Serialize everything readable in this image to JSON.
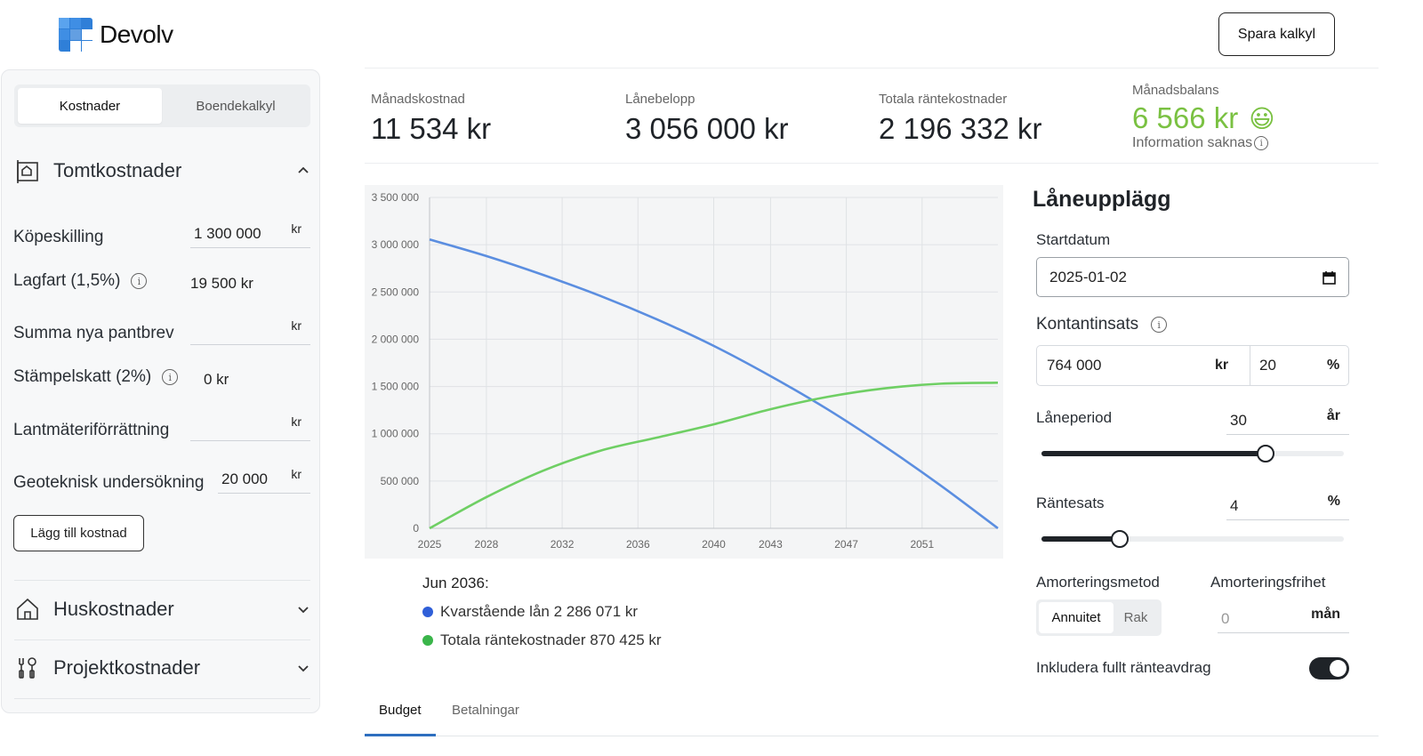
{
  "brand": {
    "name": "Devolv",
    "save_label": "Spara kalkyl"
  },
  "sidebar": {
    "tabs": [
      {
        "label": "Kostnader",
        "active": true
      },
      {
        "label": "Boendekalkyl",
        "active": false
      }
    ],
    "sections": [
      {
        "title": "Tomtkostnader",
        "icon": "plot-icon",
        "expanded": true
      },
      {
        "title": "Huskostnader",
        "icon": "house-icon",
        "expanded": false
      },
      {
        "title": "Projektkostnader",
        "icon": "tools-icon",
        "expanded": false
      }
    ],
    "rows": {
      "kopeskilling": {
        "label": "Köpeskilling",
        "value": "1 300 000",
        "unit": "kr"
      },
      "lagfart": {
        "label": "Lagfart (1,5%)",
        "value": "19 500 kr"
      },
      "pantbrev": {
        "label": "Summa nya pantbrev",
        "value": "",
        "unit": "kr"
      },
      "stampelskatt": {
        "label": "Stämpelskatt (2%)",
        "value": "0 kr"
      },
      "lantmateri": {
        "label": "Lantmäteriförrättning",
        "value": "",
        "unit": "kr"
      },
      "geoteknisk": {
        "label": "Geoteknisk undersökning",
        "value": "20 000",
        "unit": "kr"
      }
    },
    "add_cost_label": "Lägg till kostnad"
  },
  "summary": [
    {
      "label": "Månadskostnad",
      "value": "11 534 kr"
    },
    {
      "label": "Lånebelopp",
      "value": "3 056 000 kr"
    },
    {
      "label": "Totala räntekostnader",
      "value": "2 196 332 kr"
    },
    {
      "label": "Månadsbalans",
      "value": "6 566 kr",
      "note": "Information saknas",
      "emoji": "😃",
      "color": "#7ac142"
    }
  ],
  "chart_data": {
    "type": "line",
    "x_ticks": [
      "2025",
      "2028",
      "2032",
      "2036",
      "2040",
      "2043",
      "2047",
      "2051"
    ],
    "y_ticks": [
      "0",
      "500 000",
      "1 000 000",
      "1 500 000",
      "2 000 000",
      "2 500 000",
      "3 000 000",
      "3 500 000"
    ],
    "ylim": [
      0,
      3500000
    ],
    "xlim": [
      2025,
      2055
    ],
    "grid": true,
    "series": [
      {
        "name": "Kvarstående lån",
        "color": "#5b8ee0",
        "x": [
          2025,
          2028,
          2031,
          2034,
          2037,
          2040,
          2043,
          2046,
          2049,
          2052,
          2055
        ],
        "y": [
          3056000,
          2880000,
          2680000,
          2460000,
          2210000,
          1930000,
          1610000,
          1260000,
          870000,
          450000,
          0
        ]
      },
      {
        "name": "Totala räntekostnader",
        "color": "#6fcf64",
        "x": [
          2025,
          2028,
          2031,
          2034,
          2037,
          2040,
          2043,
          2046,
          2049,
          2052,
          2055
        ],
        "y": [
          0,
          330000,
          610000,
          820000,
          960000,
          1100000,
          1260000,
          1390000,
          1480000,
          1530000,
          1540000
        ]
      }
    ]
  },
  "legend": {
    "date": "Jun 2036:",
    "items": [
      {
        "text": "Kvarstående lån 2 286 071 kr",
        "color": "#2f5fd8"
      },
      {
        "text": "Totala räntekostnader 870 425 kr",
        "color": "#3ab54a"
      }
    ]
  },
  "bottom_tabs": [
    {
      "label": "Budget",
      "active": true
    },
    {
      "label": "Betalningar",
      "active": false
    }
  ],
  "loan": {
    "title": "Låneupplägg",
    "start_label": "Startdatum",
    "start_value": "2025-01-02",
    "kontantinsats_label": "Kontantinsats",
    "kontantinsats_value": "764 000",
    "kontantinsats_unit": "kr",
    "kontantinsats_pct": "20",
    "pct_unit": "%",
    "laneperiod_label": "Låneperiod",
    "laneperiod_value": "30",
    "laneperiod_unit": "år",
    "laneperiod_fraction": 0.74,
    "rantesats_label": "Räntesats",
    "rantesats_value": "4",
    "rantesats_unit": "%",
    "rantesats_fraction": 0.26,
    "amort_method_label": "Amorteringsmetod",
    "amort_options": [
      "Annuitet",
      "Rak"
    ],
    "amort_free_label": "Amorteringsfrihet",
    "amort_free_placeholder": "0",
    "amort_free_unit": "mån",
    "interest_deduction_label": "Inkludera fullt ränteavdrag",
    "interest_deduction_on": true
  }
}
